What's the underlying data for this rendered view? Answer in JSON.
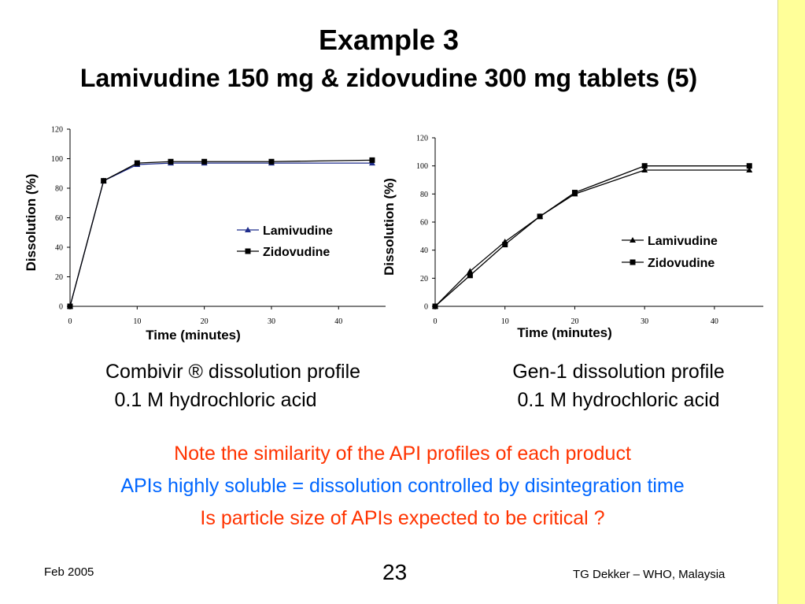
{
  "slide": {
    "title": "Example 3",
    "subtitle": "Lamivudine 150 mg & zidovudine 300 mg tablets (5)",
    "captions": [
      {
        "line1": "Combivir ® dissolution profile",
        "line2": "0.1 M hydrochloric acid"
      },
      {
        "line1": "Gen-1 dissolution profile",
        "line2": "0.1 M hydrochloric acid"
      }
    ],
    "notes": [
      {
        "text": "Note the similarity of the API profiles of each product",
        "color": "#ff3300"
      },
      {
        "text": "APIs highly soluble  = dissolution controlled by disintegration time",
        "color": "#0066ff"
      },
      {
        "text": "Is particle size of APIs expected to be critical ?",
        "color": "#ff3300"
      }
    ],
    "footer": {
      "left": "Feb 2005",
      "center": "23",
      "right": "TG Dekker – WHO, Malaysia"
    },
    "colors": {
      "side_band": "#ffff99"
    }
  },
  "chart_data": [
    {
      "type": "line",
      "title": "",
      "xlabel": "Time (minutes)",
      "ylabel": "Dissolution (%)",
      "xlim": [
        0,
        47
      ],
      "ylim": [
        0,
        120
      ],
      "xticks": [
        0,
        10,
        20,
        30,
        40
      ],
      "yticks": [
        0,
        20,
        40,
        60,
        80,
        100,
        120
      ],
      "grid": false,
      "legend_position": "right",
      "x": [
        0,
        5,
        10,
        15,
        20,
        30,
        45
      ],
      "series": [
        {
          "name": "Lamivudine",
          "marker": "triangle",
          "color": "#1f2d8c",
          "values": [
            0,
            85,
            96,
            97,
            97,
            97,
            97
          ]
        },
        {
          "name": "Zidovudine",
          "marker": "square",
          "color": "#000000",
          "values": [
            0,
            85,
            97,
            98,
            98,
            98,
            99
          ]
        }
      ]
    },
    {
      "type": "line",
      "title": "",
      "xlabel": "Time (minutes)",
      "ylabel": "Dissolution (%)",
      "xlim": [
        0,
        47
      ],
      "ylim": [
        0,
        120
      ],
      "xticks": [
        0,
        10,
        20,
        30,
        40
      ],
      "yticks": [
        0,
        20,
        40,
        60,
        80,
        100,
        120
      ],
      "grid": false,
      "legend_position": "right",
      "x": [
        0,
        5,
        10,
        15,
        20,
        30,
        45
      ],
      "series": [
        {
          "name": "Lamivudine",
          "marker": "triangle",
          "color": "#000000",
          "values": [
            0,
            25,
            46,
            64,
            80,
            97,
            97
          ]
        },
        {
          "name": "Zidovudine",
          "marker": "square",
          "color": "#000000",
          "values": [
            0,
            22,
            44,
            64,
            81,
            100,
            100
          ]
        }
      ]
    }
  ]
}
